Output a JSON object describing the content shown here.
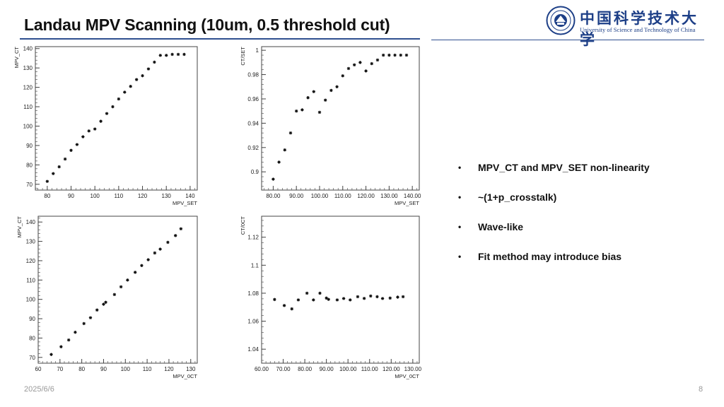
{
  "slide": {
    "title": "Landau MPV Scanning (10um, 0.5 threshold cut)",
    "date": "2025/6/6",
    "page_number": "8",
    "accent_color": "#2f4f8f"
  },
  "logo": {
    "chinese_name": "中国科学技术大学",
    "english_name": "University of Science and Technology of China",
    "brand_color": "#1d3f87"
  },
  "bullets": [
    {
      "marker": "•",
      "text": "MPV_CT and MPV_SET non-linearity"
    },
    {
      "marker": "•",
      "text": "~(1+p_crosstalk)"
    },
    {
      "marker": "•",
      "text": "Wave-like"
    },
    {
      "marker": "•",
      "text": "Fit method may introduce bias"
    }
  ],
  "chart_data": [
    {
      "type": "scatter",
      "title": "",
      "xlabel": "MPV_SET",
      "ylabel": "MPV_CT",
      "xlim": [
        75,
        143
      ],
      "ylim": [
        67,
        141
      ],
      "xticks": [
        80,
        90,
        100,
        110,
        120,
        130,
        140
      ],
      "yticks": [
        70,
        80,
        90,
        100,
        110,
        120,
        130,
        140
      ],
      "tick_decimals": 0,
      "x": [
        80,
        82.5,
        85,
        87.5,
        90,
        92.5,
        95,
        97.5,
        100,
        102.5,
        105,
        107.5,
        110,
        112.5,
        115,
        117.5,
        120,
        122.5,
        125,
        127.5,
        130,
        132.5,
        135,
        137.5
      ],
      "y": [
        71.5,
        75.5,
        79,
        83,
        87.5,
        90.5,
        94.5,
        97.5,
        98.5,
        102.5,
        106.5,
        110,
        114,
        117.5,
        120.5,
        124,
        126,
        129.5,
        133,
        136.5,
        136.5,
        137,
        137,
        137
      ]
    },
    {
      "type": "scatter",
      "title": "",
      "xlabel": "MPV_SET",
      "ylabel": "CT/SET",
      "xlim": [
        75,
        143
      ],
      "ylim": [
        0.885,
        1.003
      ],
      "xticks": [
        80,
        90,
        100,
        110,
        120,
        130,
        140
      ],
      "yticks": [
        0.9,
        0.92,
        0.94,
        0.96,
        0.98,
        1
      ],
      "tick_decimals": 2,
      "x": [
        80,
        82.5,
        85,
        87.5,
        90,
        92.5,
        95,
        97.5,
        100,
        102.5,
        105,
        107.5,
        110,
        112.5,
        115,
        117.5,
        120,
        122.5,
        125,
        127.5,
        130,
        132.5,
        135,
        137.5
      ],
      "y": [
        0.894,
        0.908,
        0.918,
        0.932,
        0.95,
        0.951,
        0.961,
        0.966,
        0.949,
        0.959,
        0.967,
        0.97,
        0.979,
        0.985,
        0.988,
        0.99,
        0.983,
        0.989,
        0.992,
        0.996,
        0.996,
        0.996,
        0.996,
        0.996
      ]
    },
    {
      "type": "scatter",
      "title": "",
      "xlabel": "MPV_0CT",
      "ylabel": "MPV_CT",
      "xlim": [
        60,
        133
      ],
      "ylim": [
        67,
        143
      ],
      "xticks": [
        60,
        70,
        80,
        90,
        100,
        110,
        120,
        130
      ],
      "yticks": [
        70,
        80,
        90,
        100,
        110,
        120,
        130,
        140
      ],
      "tick_decimals": 0,
      "x": [
        66,
        70.5,
        74,
        77,
        81,
        84,
        87,
        90,
        91,
        95,
        98,
        101,
        104.5,
        107.5,
        110.5,
        113.5,
        116,
        119.5,
        123,
        125.5
      ],
      "y": [
        71.5,
        75.5,
        79,
        83,
        87.5,
        90.5,
        94.5,
        97.5,
        98.5,
        102.5,
        106.5,
        110,
        114,
        117.5,
        120.5,
        124,
        126,
        129.5,
        133,
        136.5
      ]
    },
    {
      "type": "scatter",
      "title": "",
      "xlabel": "MPV_0CT",
      "ylabel": "CT/0CT",
      "xlim": [
        60,
        133
      ],
      "ylim": [
        1.03,
        1.135
      ],
      "xticks": [
        60,
        70,
        80,
        90,
        100,
        110,
        120,
        130
      ],
      "yticks": [
        1.04,
        1.06,
        1.08,
        1.1,
        1.12
      ],
      "tick_decimals": 2,
      "x": [
        66,
        70.5,
        74,
        77,
        81,
        84,
        87,
        90,
        91,
        95,
        98,
        101,
        104.5,
        107.5,
        110.5,
        113.5,
        116,
        119.5,
        123,
        125.5
      ],
      "y": [
        1.0755,
        1.0712,
        1.0688,
        1.0752,
        1.08,
        1.0752,
        1.08,
        1.0765,
        1.0756,
        1.0752,
        1.0762,
        1.0752,
        1.0775,
        1.0763,
        1.078,
        1.0775,
        1.0762,
        1.0765,
        1.0772,
        1.0775
      ]
    }
  ]
}
